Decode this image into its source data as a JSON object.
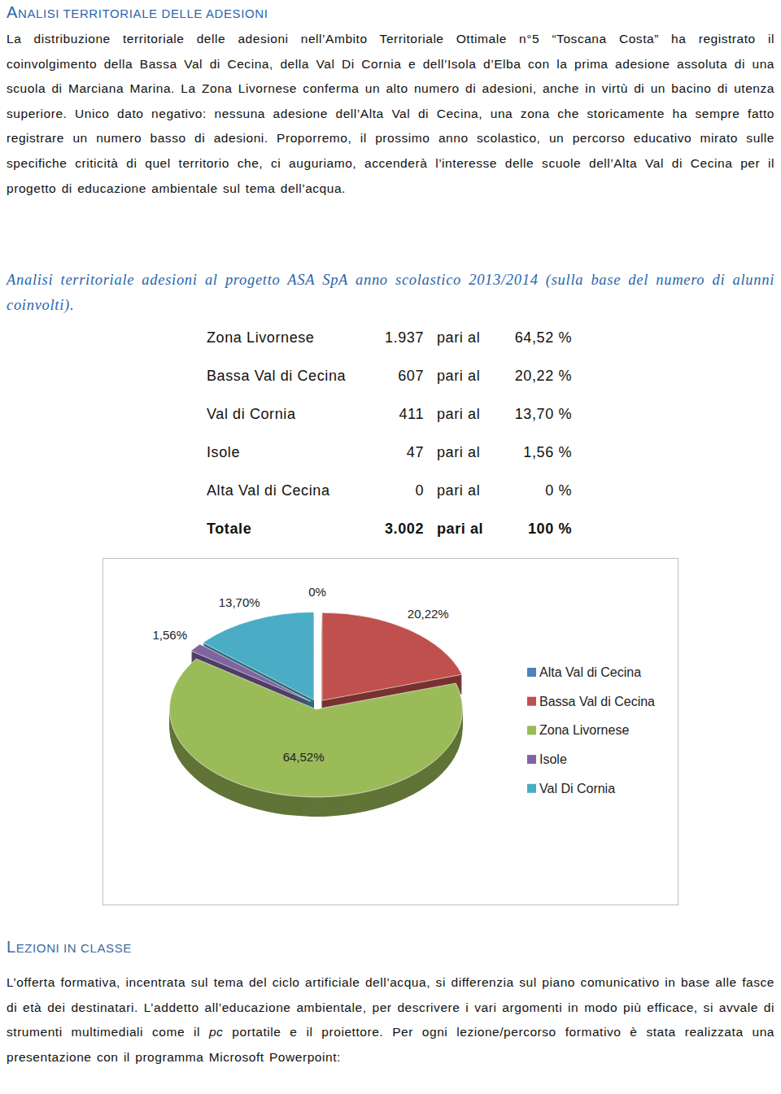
{
  "section1": {
    "title": "ANALISI TERRITORIALE DELLE ADESIONI",
    "paragraph": "La distribuzione territoriale delle adesioni nell’Ambito Territoriale Ottimale n°5 “Toscana Costa” ha registrato il coinvolgimento della Bassa Val di Cecina, della Val Di Cornia e dell’Isola d’Elba con la prima adesione assoluta di una scuola di Marciana Marina. La Zona Livornese conferma un alto numero di adesioni, anche in virtù di un bacino di utenza superiore. Unico dato negativo: nessuna adesione dell’Alta Val di Cecina, una zona che storicamente ha sempre fatto registrare un numero basso di adesioni. Proporremo, il prossimo anno scolastico, un percorso educativo mirato sulle specifiche criticità di quel territorio che, ci auguriamo, accenderà l’interesse delle scuole dell’Alta Val di Cecina per il progetto di educazione ambientale sul tema dell’acqua.",
    "caption": "Analisi territoriale adesioni al progetto ASA SpA anno scolastico 2013/2014 (sulla base del numero di alunni coinvolti)."
  },
  "table": {
    "rows": [
      [
        "Zona Livornese",
        "1.937",
        "pari al",
        "64,52 %"
      ],
      [
        "Bassa Val di Cecina",
        "607",
        "pari al",
        "20,22 %"
      ],
      [
        "Val di Cornia",
        "411",
        "pari al",
        "13,70 %"
      ],
      [
        "Isole",
        "47",
        "pari al",
        "1,56 %"
      ],
      [
        "Alta Val di Cecina",
        "0",
        "pari al",
        "0 %"
      ],
      [
        "Totale",
        "3.002",
        "pari al",
        "100 %"
      ]
    ]
  },
  "chart_data": {
    "type": "pie",
    "categories": [
      "Alta Val di Cecina",
      "Bassa Val di Cecina",
      "Zona Livornese",
      "Isole",
      "Val Di Cornia"
    ],
    "values": [
      0,
      20.22,
      64.52,
      1.56,
      13.7
    ],
    "value_labels": [
      "0%",
      "20,22%",
      "64,52%",
      "1,56%",
      "13,70%"
    ],
    "colors": [
      "#4f81bd",
      "#c0504d",
      "#9bbb59",
      "#8064a2",
      "#4bacc6"
    ],
    "data_labels": true,
    "legend": "right"
  },
  "section2": {
    "title": "LEZIONI IN CLASSE",
    "paragraph": [
      {
        "text": "L’offerta formativa, incentrata sul tema del ciclo artificiale dell’acqua, si differenzia sul piano comunicativo in base alle fasce di età dei destinatari. L’addetto all’educazione ambientale, per descrivere i vari argomenti in modo più efficace, si avvale di strumenti multimediali come il ",
        "style": "normal"
      },
      {
        "text": "pc",
        "style": "italic"
      },
      {
        "text": " portatile e il proiettore. Per ogni lezione/percorso formativo è stata realizzata una presentazione con il programma Microsoft Powerpoint:",
        "style": "normal"
      }
    ]
  }
}
